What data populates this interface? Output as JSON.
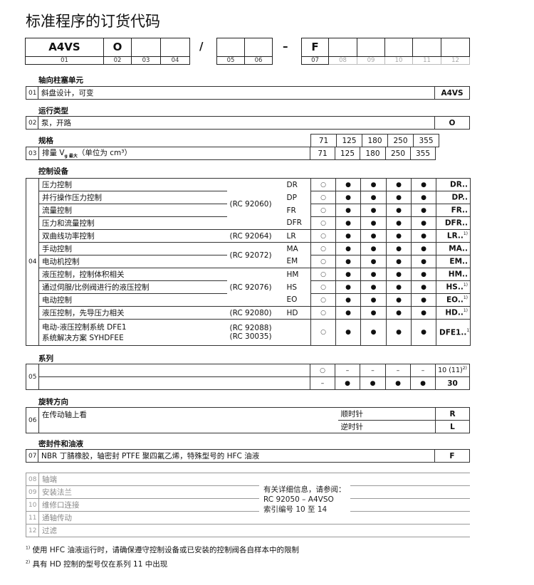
{
  "title": "标准程序的订货代码",
  "code_row": {
    "values": [
      "A4VS",
      "O",
      "",
      "",
      "/",
      "",
      "",
      "–",
      "F",
      "",
      "",
      "",
      "",
      ""
    ],
    "labels": [
      "01",
      "02",
      "03",
      "04",
      "05",
      "06",
      "07",
      "08",
      "09",
      "10",
      "11",
      "12"
    ]
  },
  "sec01": {
    "heading": "轴向柱塞单元",
    "num": "01",
    "desc": "斜盘设计，可变",
    "code": "A4VS"
  },
  "sec02": {
    "heading": "运行类型",
    "num": "02",
    "desc": "泵，开路",
    "code": "O"
  },
  "sec03": {
    "heading": "规格",
    "num": "03",
    "desc": "排量 V",
    "desc_sub": "g 最大",
    "desc_tail": "（单位为 cm³）",
    "sizes": [
      "71",
      "125",
      "180",
      "250",
      "355"
    ]
  },
  "sec04": {
    "heading": "控制设备",
    "num": "04",
    "groups": [
      {
        "rc": [
          "(RC 92060)"
        ],
        "rows": [
          {
            "desc": "压力控制",
            "code": "DR",
            "marks": [
              "○",
              "●",
              "●",
              "●",
              "●"
            ],
            "result": "DR..",
            "note": ""
          },
          {
            "desc": "并行操作压力控制",
            "code": "DP",
            "marks": [
              "○",
              "●",
              "●",
              "●",
              "●"
            ],
            "result": "DP..",
            "note": ""
          },
          {
            "desc": "流量控制",
            "code": "FR",
            "marks": [
              "○",
              "●",
              "●",
              "●",
              "●"
            ],
            "result": "FR..",
            "note": ""
          },
          {
            "desc": "压力和流量控制",
            "code": "DFR",
            "marks": [
              "○",
              "●",
              "●",
              "●",
              "●"
            ],
            "result": "DFR..",
            "note": ""
          }
        ]
      },
      {
        "rc": [
          "(RC 92064)"
        ],
        "rows": [
          {
            "desc": "双曲线功率控制",
            "code": "LR",
            "marks": [
              "○",
              "●",
              "●",
              "●",
              "●"
            ],
            "result": "LR..",
            "note": "1)"
          }
        ]
      },
      {
        "rc": [
          "(RC 92072)"
        ],
        "rows": [
          {
            "desc": "手动控制",
            "code": "MA",
            "marks": [
              "○",
              "●",
              "●",
              "●",
              "●"
            ],
            "result": "MA..",
            "note": ""
          },
          {
            "desc": "电动机控制",
            "code": "EM",
            "marks": [
              "○",
              "●",
              "●",
              "●",
              "●"
            ],
            "result": "EM..",
            "note": ""
          }
        ]
      },
      {
        "rc": [
          "(RC 92076)"
        ],
        "rows": [
          {
            "desc": "液压控制，控制体积相关",
            "code": "HM",
            "marks": [
              "○",
              "●",
              "●",
              "●",
              "●"
            ],
            "result": "HM..",
            "note": ""
          },
          {
            "desc": "通过伺服/比例阀进行的液压控制",
            "code": "HS",
            "marks": [
              "○",
              "●",
              "●",
              "●",
              "●"
            ],
            "result": "HS..",
            "note": "1)"
          },
          {
            "desc": "电动控制",
            "code": "EO",
            "marks": [
              "○",
              "●",
              "●",
              "●",
              "●"
            ],
            "result": "EO..",
            "note": "1)"
          }
        ]
      },
      {
        "rc": [
          "(RC 92080)"
        ],
        "rows": [
          {
            "desc": "液压控制，先导压力相关",
            "code": "HD",
            "marks": [
              "○",
              "●",
              "●",
              "●",
              "●"
            ],
            "result": "HD..",
            "note": "1)"
          }
        ]
      },
      {
        "rc": [
          "(RC 92088)",
          "(RC 30035)"
        ],
        "rows": [
          {
            "desc": "电动-液压控制系统 DFE1",
            "desc2": "系统解决方案 SYHDFEE",
            "code": "",
            "marks": [
              "○",
              "●",
              "●",
              "●",
              "●"
            ],
            "result": "DFE1..",
            "note": "1)"
          }
        ]
      }
    ]
  },
  "sec05": {
    "heading": "系列",
    "num": "05",
    "rows": [
      {
        "marks": [
          "○",
          "–",
          "–",
          "–",
          "–"
        ],
        "code": "10 (11)",
        "note": "2)"
      },
      {
        "marks": [
          "–",
          "●",
          "●",
          "●",
          "●"
        ],
        "code": "30",
        "note": ""
      }
    ]
  },
  "sec06": {
    "heading": "旋转方向",
    "num": "06",
    "desc": "在传动轴上看",
    "options": [
      {
        "label": "顺时针",
        "code": "R"
      },
      {
        "label": "逆时针",
        "code": "L"
      }
    ]
  },
  "sec07": {
    "heading": "密封件和油液",
    "num": "07",
    "desc": "NBR 丁腈橡胶，轴密封 PTFE 聚四氟乙烯，特殊型号的 HFC 油液",
    "code": "F"
  },
  "other": {
    "rows": [
      {
        "num": "08",
        "label": "轴端"
      },
      {
        "num": "09",
        "label": "安装法兰"
      },
      {
        "num": "10",
        "label": "维修口连接"
      },
      {
        "num": "11",
        "label": "通轴传动"
      },
      {
        "num": "12",
        "label": "过滤"
      }
    ],
    "reference": [
      "有关详细信息，请参阅：",
      "RC 92050 – A4VSO",
      "索引编号 10 至 14"
    ]
  },
  "footnotes": [
    {
      "mark": "1)",
      "text": "使用 HFC 油液运行时，请确保遵守控制设备或已安装的控制阀各自样本中的限制"
    },
    {
      "mark": "2)",
      "text": "具有 HD 控制的型号仅在系列 11 中出现"
    }
  ]
}
